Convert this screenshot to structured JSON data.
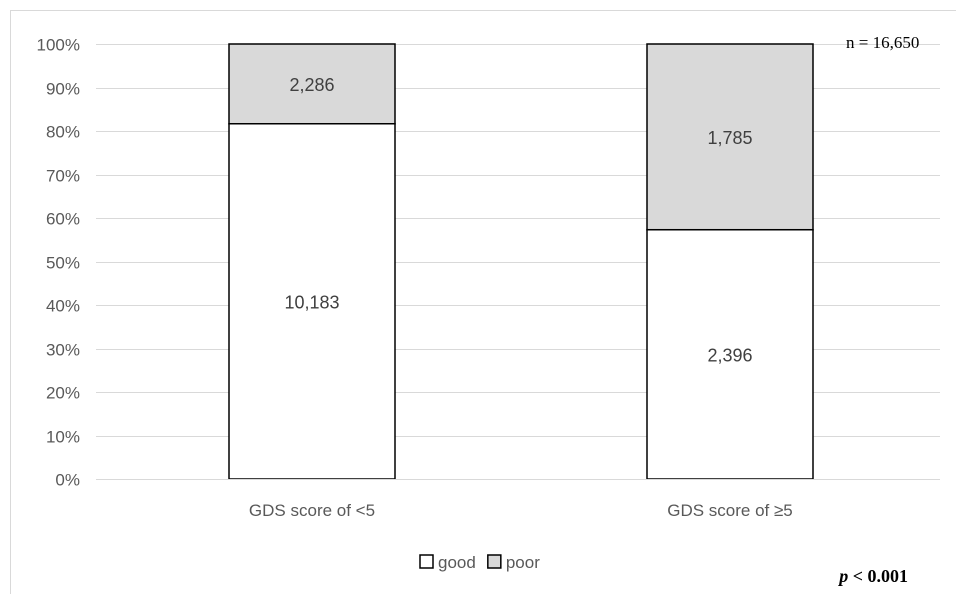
{
  "chart_data": {
    "type": "bar",
    "stacked": true,
    "normalized": true,
    "categories": [
      "GDS score of <5",
      "GDS score of ≥5"
    ],
    "series": [
      {
        "name": "good",
        "values": [
          10183,
          2396
        ],
        "color": "#ffffff"
      },
      {
        "name": "poor",
        "values": [
          2286,
          1785
        ],
        "color": "#d9d9d9"
      }
    ],
    "ylim": [
      0,
      100
    ],
    "yticks": [
      "0%",
      "10%",
      "20%",
      "30%",
      "40%",
      "50%",
      "60%",
      "70%",
      "80%",
      "90%",
      "100%"
    ],
    "grid": true,
    "legend_position": "bottom",
    "value_labels": [
      [
        "10,183",
        "2,396"
      ],
      [
        "2,286",
        "1,785"
      ]
    ]
  },
  "annotations": {
    "sample_size": "n = 16,650",
    "p_value_symbol": "p",
    "p_value_rest": " < 0.001"
  }
}
